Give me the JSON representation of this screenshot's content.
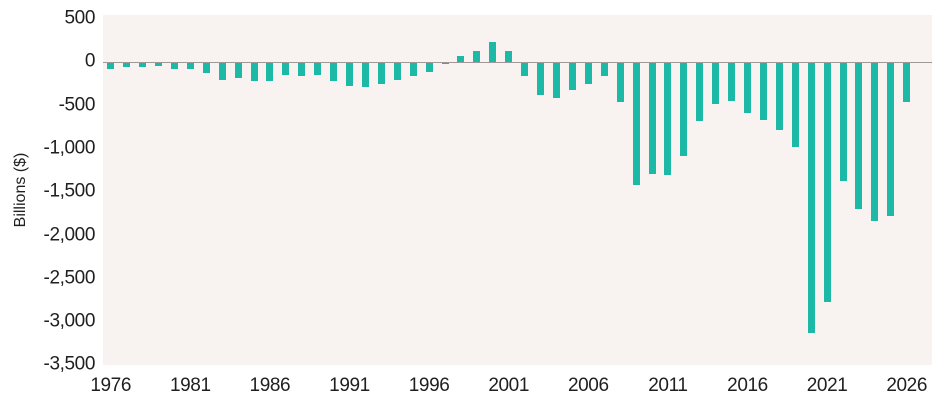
{
  "chart_data": {
    "type": "bar",
    "title": "",
    "xlabel": "",
    "ylabel": "Billions ($)",
    "x": [
      1976,
      1977,
      1978,
      1979,
      1980,
      1981,
      1982,
      1983,
      1984,
      1985,
      1986,
      1987,
      1988,
      1989,
      1990,
      1991,
      1992,
      1993,
      1994,
      1995,
      1996,
      1997,
      1998,
      1999,
      2000,
      2001,
      2002,
      2003,
      2004,
      2005,
      2006,
      2007,
      2008,
      2009,
      2010,
      2011,
      2012,
      2013,
      2014,
      2015,
      2016,
      2017,
      2018,
      2019,
      2020,
      2021,
      2022,
      2023,
      2024,
      2025,
      2026
    ],
    "values": [
      -73.7,
      -53.7,
      -59.2,
      -40.7,
      -73.8,
      -79.0,
      -128.0,
      -207.8,
      -185.4,
      -212.3,
      -221.2,
      -149.7,
      -155.2,
      -152.6,
      -221.0,
      -269.2,
      -290.3,
      -255.1,
      -203.2,
      -164.0,
      -107.4,
      -21.9,
      69.3,
      125.6,
      236.2,
      128.2,
      -157.8,
      -377.6,
      -412.7,
      -318.3,
      -248.2,
      -160.7,
      -458.6,
      -1412.7,
      -1294.4,
      -1299.6,
      -1087.0,
      -679.8,
      -484.8,
      -441.9,
      -584.7,
      -665.4,
      -779.1,
      -984.4,
      -3131.9,
      -2772.2,
      -1375.4,
      -1695.2,
      -1833.8,
      -1775.0,
      -460.0
    ],
    "ylim": [
      -3500,
      500
    ],
    "y_tick_values": [
      500,
      0,
      -500,
      -1000,
      -1500,
      -2000,
      -2500,
      -3000,
      -3500
    ],
    "y_tick_labels": [
      "500",
      "0",
      "-500",
      "-1,000",
      "-1,500",
      "-2,000",
      "-2,500",
      "-3,000",
      "-3,500"
    ],
    "x_tick_values": [
      1976,
      1981,
      1986,
      1991,
      1996,
      2001,
      2006,
      2011,
      2016,
      2021,
      2026
    ],
    "x_tick_labels": [
      "1976",
      "1981",
      "1986",
      "1991",
      "1996",
      "2001",
      "2006",
      "2011",
      "2016",
      "2021",
      "2026"
    ],
    "grid": false,
    "legend": false,
    "bar_color": "#1db9a7",
    "plot_background": "#f8f3f1",
    "zero_line_color": "#9e9998",
    "text_color": "#1f1f1f"
  }
}
